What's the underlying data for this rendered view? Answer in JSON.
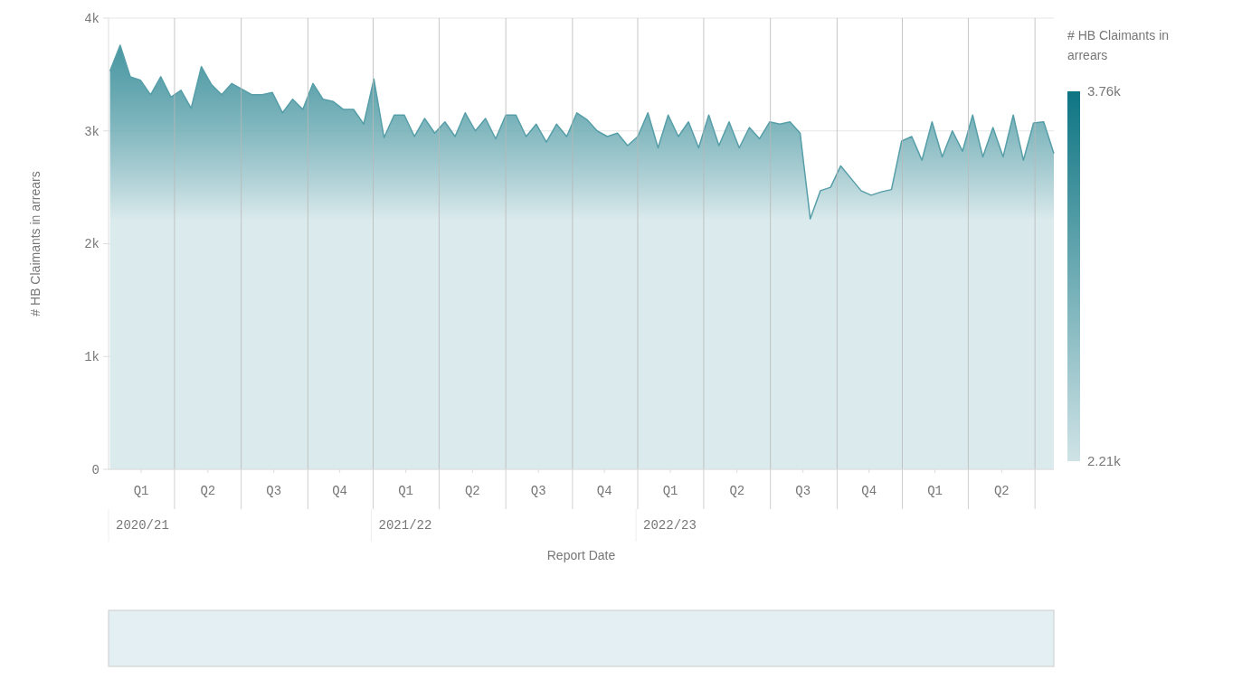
{
  "chart_data": {
    "type": "area",
    "xlabel": "Report Date",
    "ylabel": "# HB Claimants in arrears",
    "clabel": "# HB Claimants in arrears",
    "x": [
      "2020-04-03",
      "2020-04-17",
      "2020-05-01",
      "2020-05-15",
      "2020-05-29",
      "2020-06-12",
      "2020-06-26",
      "2020-07-10",
      "2020-07-24",
      "2020-08-07",
      "2020-08-21",
      "2020-09-04",
      "2020-09-18",
      "2020-10-02",
      "2020-10-16",
      "2020-10-30",
      "2020-11-13",
      "2020-11-27",
      "2020-12-11",
      "2020-12-25",
      "2021-01-08",
      "2021-01-22",
      "2021-02-05",
      "2021-02-19",
      "2021-03-05",
      "2021-03-19",
      "2021-04-02",
      "2021-04-16",
      "2021-04-30",
      "2021-05-14",
      "2021-05-28",
      "2021-06-11",
      "2021-06-25",
      "2021-07-09",
      "2021-07-23",
      "2021-08-06",
      "2021-08-20",
      "2021-09-03",
      "2021-09-17",
      "2021-10-01",
      "2021-10-15",
      "2021-10-29",
      "2021-11-12",
      "2021-11-26",
      "2021-12-10",
      "2021-12-24",
      "2022-01-07",
      "2022-01-21",
      "2022-02-04",
      "2022-02-18",
      "2022-03-04",
      "2022-03-18",
      "2022-04-01",
      "2022-04-15",
      "2022-04-29",
      "2022-05-13",
      "2022-05-27",
      "2022-06-10",
      "2022-06-24",
      "2022-07-08",
      "2022-07-22",
      "2022-08-05",
      "2022-08-19",
      "2022-09-02",
      "2022-09-16",
      "2022-09-30",
      "2022-10-14",
      "2022-10-28",
      "2022-11-11",
      "2022-11-25",
      "2022-12-09",
      "2022-12-23",
      "2023-01-06",
      "2023-01-20",
      "2023-02-03",
      "2023-02-17",
      "2023-03-03",
      "2023-03-17",
      "2023-03-31",
      "2023-04-14",
      "2023-04-28",
      "2023-05-12",
      "2023-05-26",
      "2023-06-09",
      "2023-06-23",
      "2023-07-07",
      "2023-07-21",
      "2023-08-04",
      "2023-08-18",
      "2023-09-01",
      "2023-09-15",
      "2023-09-29",
      "2023-10-13",
      "2023-10-27"
    ],
    "series": [
      {
        "color": "#0e7583",
        "values": [
          3530,
          3760,
          3480,
          3450,
          3320,
          3480,
          3300,
          3360,
          3200,
          3570,
          3410,
          3320,
          3420,
          3370,
          3320,
          3320,
          3340,
          3160,
          3280,
          3190,
          3420,
          3280,
          3260,
          3190,
          3190,
          3060,
          3460,
          2940,
          3140,
          3140,
          2950,
          3110,
          2980,
          3080,
          2950,
          3160,
          3000,
          3110,
          2930,
          3140,
          3140,
          2950,
          3060,
          2900,
          3060,
          2950,
          3160,
          3100,
          3000,
          2950,
          2980,
          2870,
          2950,
          3160,
          2850,
          3140,
          2950,
          3080,
          2850,
          3140,
          2870,
          3080,
          2850,
          3030,
          2930,
          3080,
          3060,
          3080,
          2980,
          2220,
          2470,
          2500,
          2690,
          2580,
          2470,
          2430,
          2460,
          2480,
          2910,
          2950,
          2740,
          3080,
          2770,
          3000,
          2820,
          3140,
          2770,
          3030,
          2770,
          3140,
          2740,
          3070,
          3080,
          2800
        ]
      }
    ],
    "xlim": [
      "2020-04-01",
      "2023-10-27"
    ],
    "xticks": [
      {
        "value": "2020-05-16",
        "label": "Q1"
      },
      {
        "value": "2020-07-01",
        "label": null
      },
      {
        "value": "2020-08-16",
        "label": "Q2"
      },
      {
        "value": "2020-10-01",
        "label": null
      },
      {
        "value": "2020-11-15",
        "label": "Q3"
      },
      {
        "value": "2021-01-01",
        "label": null
      },
      {
        "value": "2021-02-14",
        "label": "Q4"
      },
      {
        "value": "2021-04-01",
        "label": null
      },
      {
        "value": "2021-05-16",
        "label": "Q1"
      },
      {
        "value": "2021-07-01",
        "label": null
      },
      {
        "value": "2021-08-16",
        "label": "Q2"
      },
      {
        "value": "2021-10-01",
        "label": null
      },
      {
        "value": "2021-11-15",
        "label": "Q3"
      },
      {
        "value": "2022-01-01",
        "label": null
      },
      {
        "value": "2022-02-14",
        "label": "Q4"
      },
      {
        "value": "2022-04-01",
        "label": null
      },
      {
        "value": "2022-05-16",
        "label": "Q1"
      },
      {
        "value": "2022-07-01",
        "label": null
      },
      {
        "value": "2022-08-16",
        "label": "Q2"
      },
      {
        "value": "2022-10-01",
        "label": null
      },
      {
        "value": "2022-11-15",
        "label": "Q3"
      },
      {
        "value": "2023-01-01",
        "label": null
      },
      {
        "value": "2023-02-14",
        "label": "Q4"
      },
      {
        "value": "2023-04-01",
        "label": null
      },
      {
        "value": "2023-05-16",
        "label": "Q1"
      },
      {
        "value": "2023-07-01",
        "label": null
      },
      {
        "value": "2023-08-16",
        "label": "Q2"
      },
      {
        "value": "2023-10-01",
        "label": null
      }
    ],
    "ylim": [
      0,
      4000
    ],
    "yticks": [
      0,
      {
        "value": 1000,
        "label": "1k"
      },
      {
        "value": 2000,
        "label": "2k"
      },
      {
        "value": 3000,
        "label": "3k"
      },
      {
        "value": 4000,
        "label": "4k"
      }
    ],
    "grid": true,
    "clim": [
      2210,
      3760
    ],
    "cticks": [
      {
        "value": 2210,
        "label": "2.21k"
      },
      {
        "value": 3760,
        "label": "3.76k"
      }
    ],
    "annotations": [
      "2020/21",
      "2021/22",
      "2022/23"
    ]
  }
}
